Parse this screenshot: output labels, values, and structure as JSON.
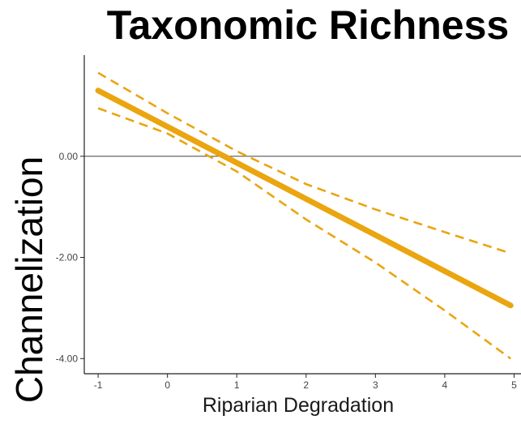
{
  "chart_data": {
    "type": "line",
    "title": "Taxonomic Richness",
    "xlabel": "Riparian Degradation",
    "ylabel": "Channelization",
    "xlim": [
      -1.2,
      5.1
    ],
    "ylim": [
      -4.3,
      2.0
    ],
    "x_ticks": [
      -1,
      0,
      1,
      2,
      3,
      4,
      5
    ],
    "x_tick_labels": [
      "-1",
      "0",
      "1",
      "2",
      "3",
      "4",
      "5"
    ],
    "y_ticks": [
      0,
      -2,
      -4
    ],
    "y_tick_labels": [
      "0.00",
      "-2.00",
      "-4.00"
    ],
    "reference_line_y": 0,
    "grid": false,
    "series": [
      {
        "role": "fit",
        "style": "solid",
        "color": "#eaa50f",
        "x": [
          -1,
          4.95
        ],
        "y": [
          1.3,
          -2.95
        ]
      },
      {
        "role": "upper-ci",
        "style": "dashed",
        "color": "#eaa50f",
        "x": [
          -1,
          0,
          1,
          2,
          3,
          4,
          4.95
        ],
        "y": [
          1.65,
          0.85,
          0.1,
          -0.55,
          -1.05,
          -1.5,
          -1.92
        ]
      },
      {
        "role": "lower-ci",
        "style": "dashed",
        "color": "#eaa50f",
        "x": [
          -1,
          0,
          1,
          2,
          3,
          4,
          4.95
        ],
        "y": [
          0.95,
          0.45,
          -0.3,
          -1.25,
          -2.1,
          -3.05,
          -4.0
        ]
      }
    ]
  }
}
